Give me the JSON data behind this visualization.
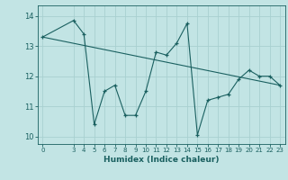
{
  "xlabel": "Humidex (Indice chaleur)",
  "ylabel": "",
  "bg_color": "#c2e4e4",
  "grid_color": "#a8d0d0",
  "line_color": "#1a6060",
  "xlim": [
    -0.5,
    23.5
  ],
  "ylim": [
    9.75,
    14.35
  ],
  "xticks": [
    0,
    3,
    4,
    5,
    6,
    7,
    8,
    9,
    10,
    11,
    12,
    13,
    14,
    15,
    16,
    17,
    18,
    19,
    20,
    21,
    22,
    23
  ],
  "yticks": [
    10,
    11,
    12,
    13,
    14
  ],
  "data_x": [
    0,
    3,
    4,
    5,
    6,
    7,
    8,
    9,
    10,
    11,
    12,
    13,
    14,
    15,
    16,
    17,
    18,
    19,
    20,
    21,
    22,
    23
  ],
  "data_y": [
    13.3,
    13.85,
    13.4,
    10.4,
    11.5,
    11.7,
    10.7,
    10.7,
    11.5,
    12.8,
    12.7,
    13.1,
    13.75,
    10.05,
    11.2,
    11.3,
    11.4,
    11.9,
    12.2,
    12.0,
    12.0,
    11.7
  ],
  "trend_x": [
    0,
    23
  ],
  "trend_y": [
    13.3,
    11.7
  ]
}
